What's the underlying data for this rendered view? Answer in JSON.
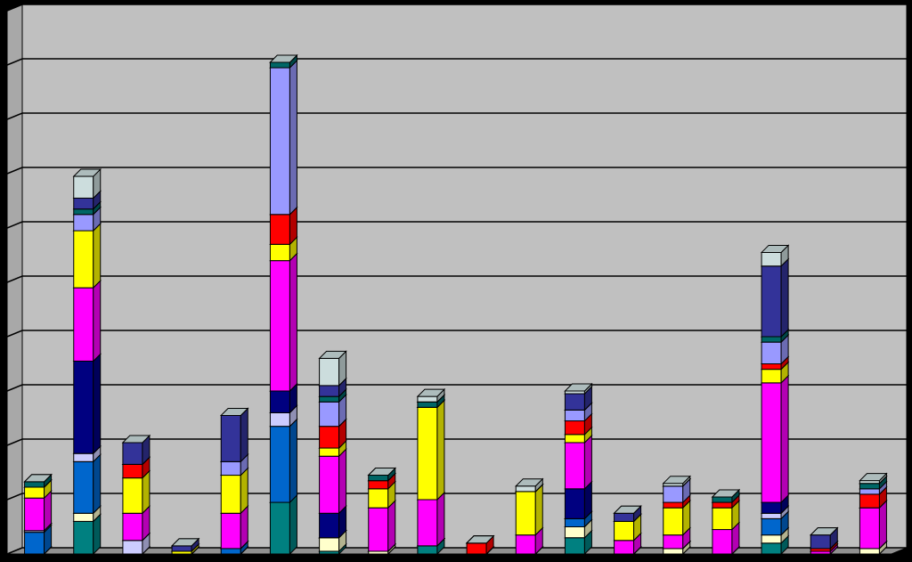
{
  "chart_data": {
    "type": "bar3d_stacked",
    "categories": [
      null,
      null,
      null,
      null,
      null,
      null,
      null,
      null,
      null,
      null,
      null,
      null,
      null,
      null,
      null,
      null,
      null,
      null
    ],
    "ylim": [
      0,
      10
    ],
    "yticks": [
      0,
      1,
      2,
      3,
      4,
      5,
      6,
      7,
      8,
      9,
      10
    ],
    "grid": true,
    "series": [
      {
        "color": "#008080",
        "values": [
          0,
          0.6,
          0,
          0,
          0,
          0.95,
          0.05,
          0,
          0.15,
          0,
          0,
          0.3,
          0,
          0,
          0,
          0.2,
          0,
          0
        ]
      },
      {
        "color": "#ffffcc",
        "values": [
          0,
          0.15,
          0,
          0,
          0,
          0,
          0.25,
          0.05,
          0,
          0,
          0,
          0.2,
          0,
          0.1,
          0,
          0.15,
          0,
          0.1
        ]
      },
      {
        "color": "#0066cc",
        "values": [
          0.4,
          0.95,
          0,
          0,
          0.1,
          1.4,
          0,
          0,
          0,
          0,
          0,
          0.15,
          0,
          0,
          0,
          0.3,
          0,
          0
        ]
      },
      {
        "color": "#ccccff",
        "values": [
          0.03,
          0.15,
          0.25,
          0,
          0,
          0.25,
          0,
          0,
          0,
          0,
          0,
          0,
          0,
          0,
          0,
          0.1,
          0,
          0
        ]
      },
      {
        "color": "#000080",
        "values": [
          0,
          1.7,
          0,
          0,
          0,
          0.4,
          0.45,
          0,
          0,
          0,
          0,
          0.55,
          0,
          0,
          0,
          0.2,
          0,
          0
        ]
      },
      {
        "color": "#ff00ff",
        "values": [
          0.6,
          1.35,
          0.5,
          0,
          0.65,
          2.4,
          1.05,
          0.8,
          0.85,
          0,
          0.35,
          0.85,
          0.25,
          0.25,
          0.45,
          2.2,
          0.05,
          0.75
        ]
      },
      {
        "color": "#ffff00",
        "values": [
          0.2,
          1.05,
          0.65,
          0.05,
          0.7,
          0.3,
          0.15,
          0.35,
          1.7,
          0,
          0.8,
          0.15,
          0.35,
          0.5,
          0.4,
          0.25,
          0,
          0
        ]
      },
      {
        "color": "#ff0000",
        "values": [
          0,
          0,
          0.25,
          0,
          0,
          0.55,
          0.4,
          0.15,
          0,
          0.2,
          0,
          0.25,
          0,
          0.1,
          0.1,
          0.1,
          0.05,
          0.25
        ]
      },
      {
        "color": "#9999ff",
        "values": [
          0,
          0.3,
          0,
          0,
          0.25,
          2.7,
          0.45,
          0,
          0,
          0,
          0,
          0.2,
          0,
          0.3,
          0,
          0.4,
          0,
          0.1
        ]
      },
      {
        "color": "#006666",
        "values": [
          0.1,
          0.1,
          0,
          0,
          0,
          0.1,
          0.1,
          0.1,
          0.1,
          0,
          0,
          0,
          0,
          0,
          0.1,
          0.1,
          0,
          0.1
        ]
      },
      {
        "color": "#333399",
        "values": [
          0,
          0.2,
          0.4,
          0.1,
          0.85,
          0,
          0.2,
          0,
          0,
          0,
          0,
          0.3,
          0.15,
          0,
          0,
          1.3,
          0.25,
          0
        ]
      },
      {
        "color": "#ccdddd",
        "values": [
          0,
          0.4,
          0,
          0,
          0,
          0,
          0.5,
          0,
          0.1,
          0,
          0.1,
          0.05,
          0,
          0.05,
          0,
          0.25,
          0,
          0.05
        ]
      }
    ]
  }
}
